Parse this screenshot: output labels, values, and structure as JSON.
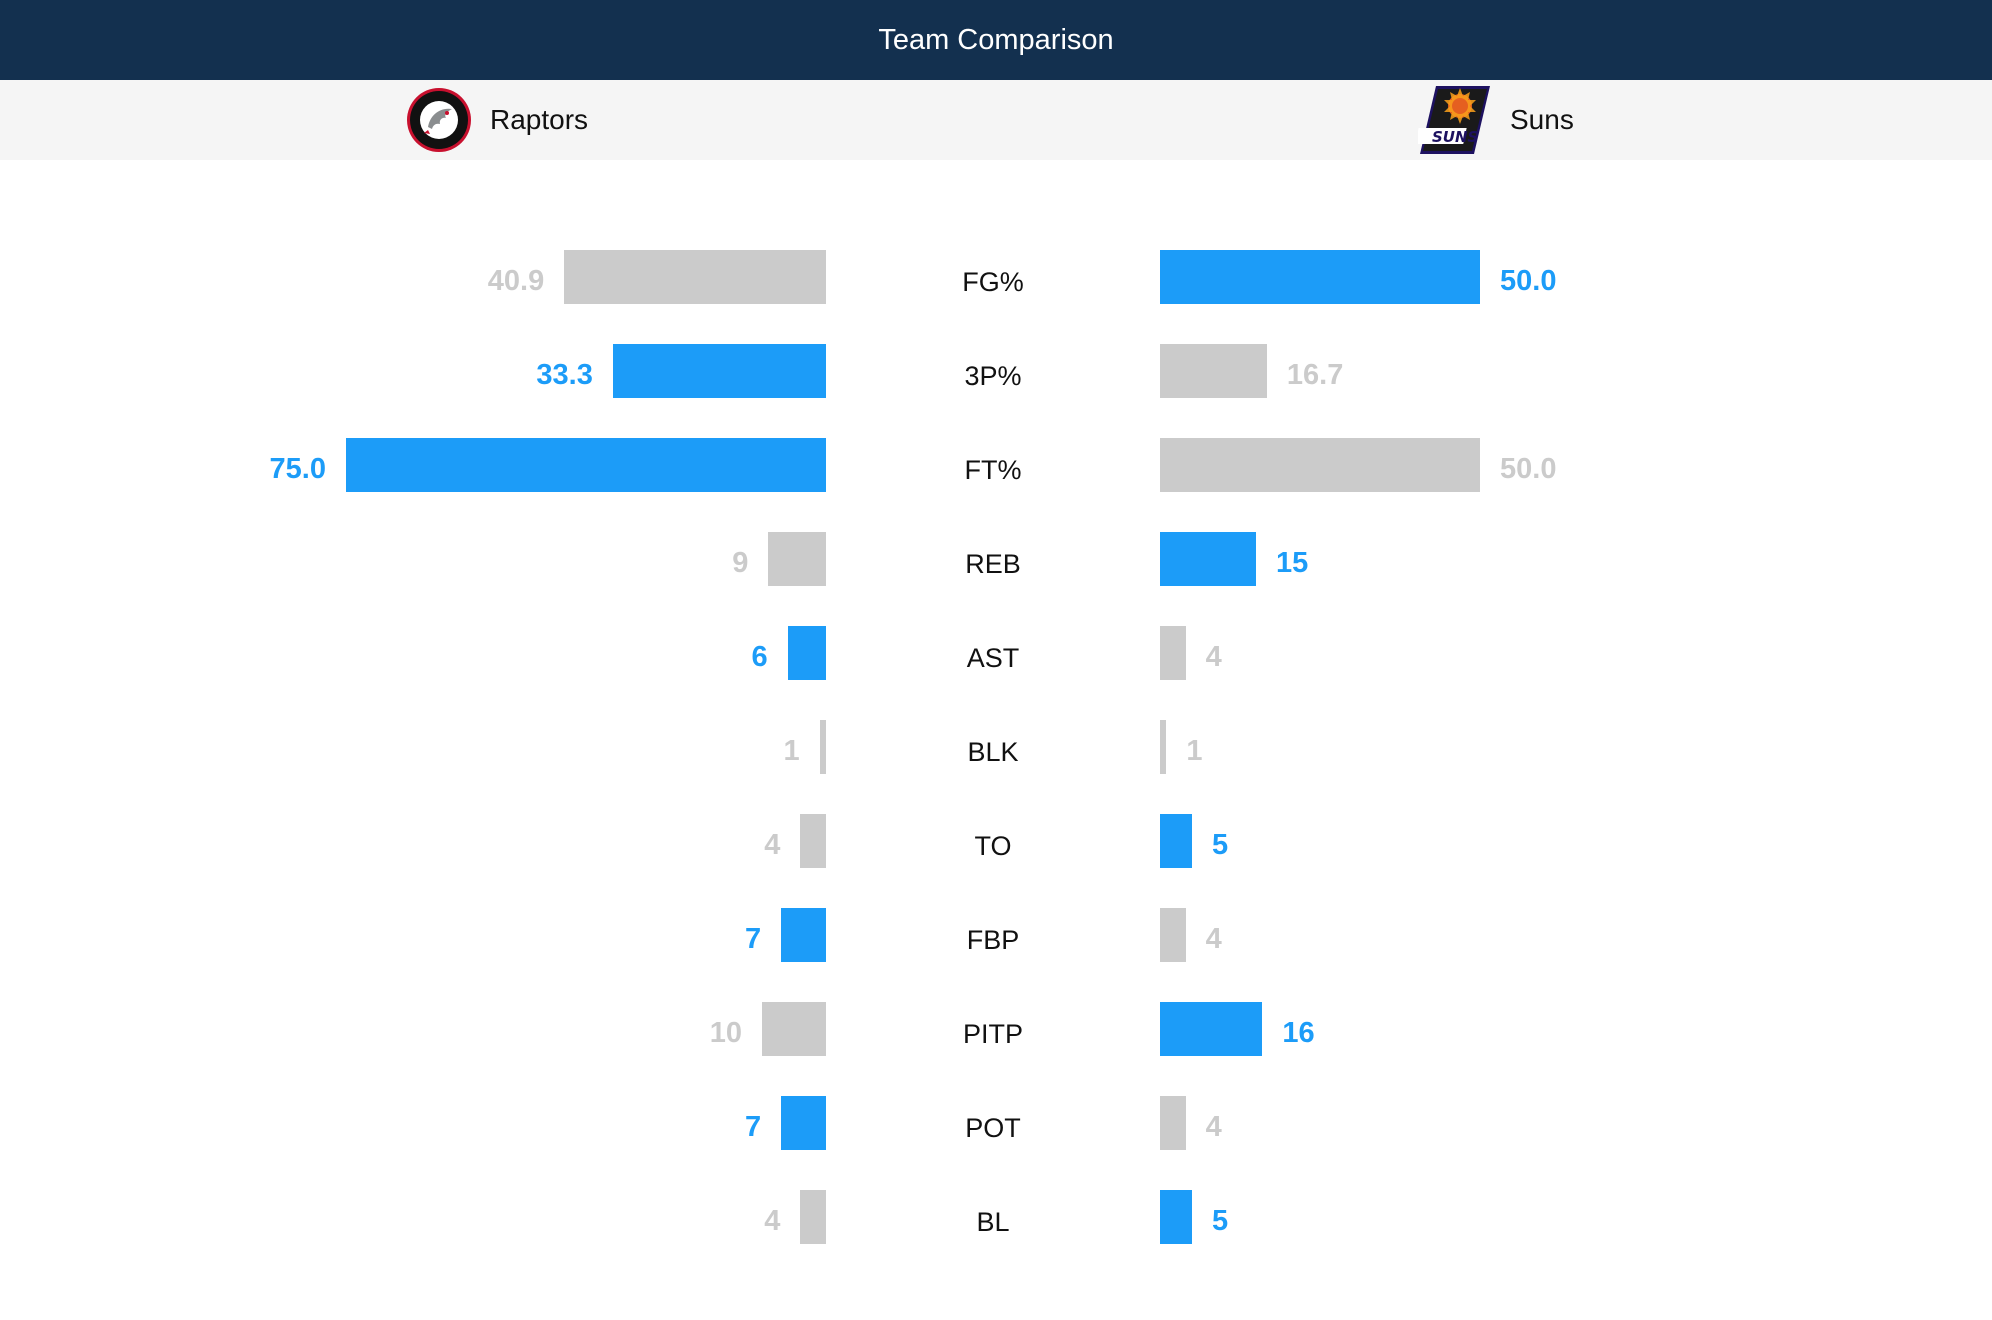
{
  "header": {
    "title": "Team Comparison"
  },
  "teams": {
    "home": {
      "name": "Raptors",
      "logo_icon": "raptors-logo-icon"
    },
    "away": {
      "name": "Suns",
      "logo_icon": "suns-logo-icon"
    }
  },
  "colors": {
    "leader": "#1c9cf8",
    "trailer": "#cbcbcb",
    "header_bg": "#13304f",
    "team_bar_bg": "#f5f5f5"
  },
  "stats": [
    {
      "label": "FG%",
      "home": "40.9",
      "away": "50.0",
      "home_leads": false,
      "away_leads": true
    },
    {
      "label": "3P%",
      "home": "33.3",
      "away": "16.7",
      "home_leads": true,
      "away_leads": false
    },
    {
      "label": "FT%",
      "home": "75.0",
      "away": "50.0",
      "home_leads": true,
      "away_leads": false
    },
    {
      "label": "REB",
      "home": "9",
      "away": "15",
      "home_leads": false,
      "away_leads": true
    },
    {
      "label": "AST",
      "home": "6",
      "away": "4",
      "home_leads": true,
      "away_leads": false
    },
    {
      "label": "BLK",
      "home": "1",
      "away": "1",
      "home_leads": false,
      "away_leads": false
    },
    {
      "label": "TO",
      "home": "4",
      "away": "5",
      "home_leads": false,
      "away_leads": true
    },
    {
      "label": "FBP",
      "home": "7",
      "away": "4",
      "home_leads": true,
      "away_leads": false
    },
    {
      "label": "PITP",
      "home": "10",
      "away": "16",
      "home_leads": false,
      "away_leads": true
    },
    {
      "label": "POT",
      "home": "7",
      "away": "4",
      "home_leads": true,
      "away_leads": false
    },
    {
      "label": "BL",
      "home": "4",
      "away": "5",
      "home_leads": false,
      "away_leads": true
    }
  ]
}
